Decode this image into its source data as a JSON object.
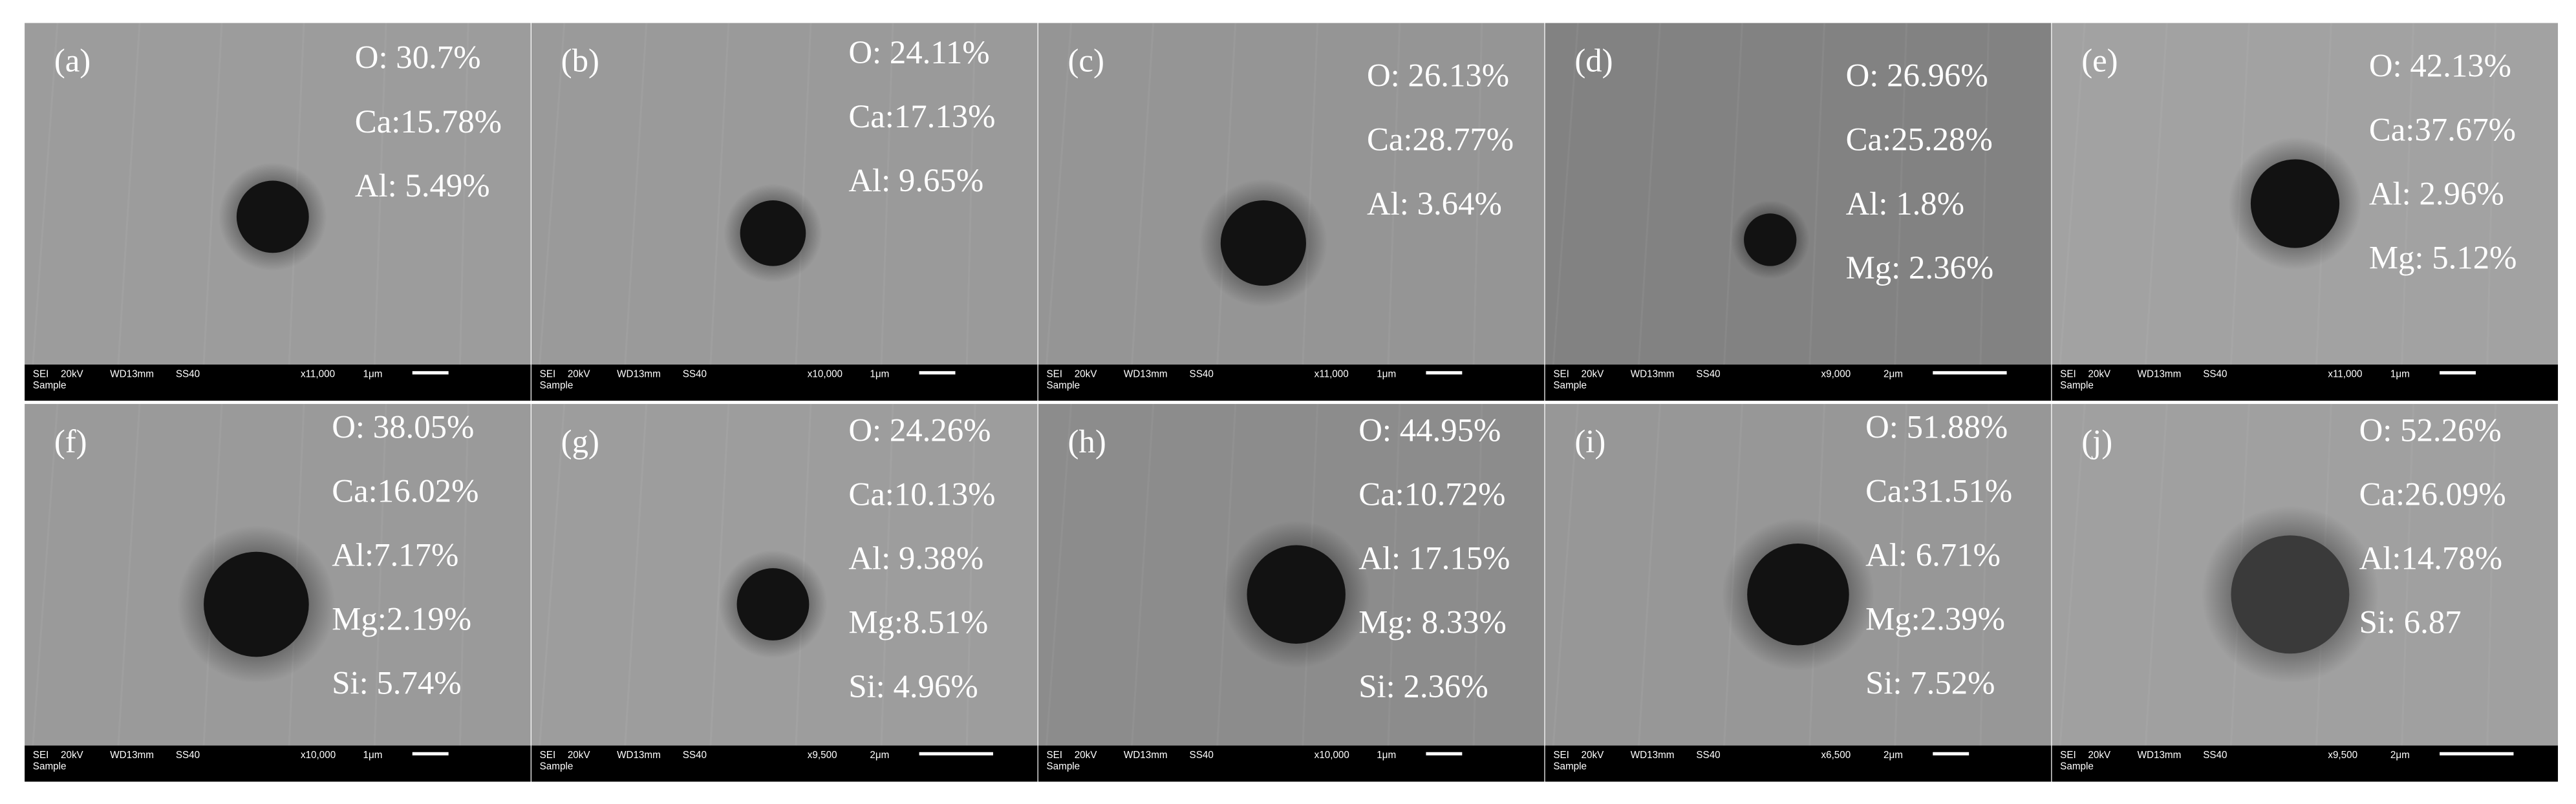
{
  "panels": [
    {
      "label": "(a)",
      "composition": [
        "O: 30.7%",
        "Ca:15.78%",
        "Al: 5.49%"
      ],
      "info": {
        "detector": "SEI",
        "voltage": "20kV",
        "wd": "WD13mm",
        "ss": "SS40",
        "magnification": "x11,000",
        "scale": "1μm",
        "sample": "Sample"
      }
    },
    {
      "label": "(b)",
      "composition": [
        "O: 24.11%",
        "Ca:17.13%",
        "Al: 9.65%"
      ],
      "info": {
        "detector": "SEI",
        "voltage": "20kV",
        "wd": "WD13mm",
        "ss": "SS40",
        "magnification": "x10,000",
        "scale": "1μm",
        "sample": "Sample"
      }
    },
    {
      "label": "(c)",
      "composition": [
        "O: 26.13%",
        "Ca:28.77%",
        "Al: 3.64%"
      ],
      "info": {
        "detector": "SEI",
        "voltage": "20kV",
        "wd": "WD13mm",
        "ss": "SS40",
        "magnification": "x11,000",
        "scale": "1μm",
        "sample": "Sample"
      }
    },
    {
      "label": "(d)",
      "composition": [
        "O: 26.96%",
        "Ca:25.28%",
        "Al: 1.8%",
        "Mg: 2.36%"
      ],
      "info": {
        "detector": "SEI",
        "voltage": "20kV",
        "wd": "WD13mm",
        "ss": "SS40",
        "magnification": "x9,000",
        "scale": "2μm",
        "sample": "Sample"
      }
    },
    {
      "label": "(e)",
      "composition": [
        "O: 42.13%",
        "Ca:37.67%",
        "Al: 2.96%",
        "Mg: 5.12%"
      ],
      "info": {
        "detector": "SEI",
        "voltage": "20kV",
        "wd": "WD13mm",
        "ss": "SS40",
        "magnification": "x11,000",
        "scale": "1μm",
        "sample": "Sample"
      }
    },
    {
      "label": "(f)",
      "composition": [
        "O: 38.05%",
        "Ca:16.02%",
        "Al:7.17%",
        "Mg:2.19%",
        "Si: 5.74%"
      ],
      "info": {
        "detector": "SEI",
        "voltage": "20kV",
        "wd": "WD13mm",
        "ss": "SS40",
        "magnification": "x10,000",
        "scale": "1μm",
        "sample": "Sample"
      }
    },
    {
      "label": "(g)",
      "composition": [
        "O: 24.26%",
        "Ca:10.13%",
        "Al: 9.38%",
        "Mg:8.51%",
        "Si: 4.96%"
      ],
      "info": {
        "detector": "SEI",
        "voltage": "20kV",
        "wd": "WD13mm",
        "ss": "SS40",
        "magnification": "x9,500",
        "scale": "2μm",
        "sample": "Sample"
      }
    },
    {
      "label": "(h)",
      "composition": [
        "O: 44.95%",
        "Ca:10.72%",
        "Al: 17.15%",
        "Mg: 8.33%",
        "Si: 2.36%"
      ],
      "info": {
        "detector": "SEI",
        "voltage": "20kV",
        "wd": "WD13mm",
        "ss": "SS40",
        "magnification": "x10,000",
        "scale": "1μm",
        "sample": "Sample"
      }
    },
    {
      "label": "(i)",
      "composition": [
        "O: 51.88%",
        "Ca:31.51%",
        "Al: 6.71%",
        "Mg:2.39%",
        "Si: 7.52%"
      ],
      "info": {
        "detector": "SEI",
        "voltage": "20kV",
        "wd": "WD13mm",
        "ss": "SS40",
        "magnification": "x6,500",
        "scale": "2μm",
        "sample": "Sample"
      }
    },
    {
      "label": "(j)",
      "composition": [
        "O: 52.26%",
        "Ca:26.09%",
        "Al:14.78%",
        "Si: 6.87"
      ],
      "info": {
        "detector": "SEI",
        "voltage": "20kV",
        "wd": "WD13mm",
        "ss": "SS40",
        "magnification": "x9,500",
        "scale": "2μm",
        "sample": "Sample"
      }
    }
  ]
}
